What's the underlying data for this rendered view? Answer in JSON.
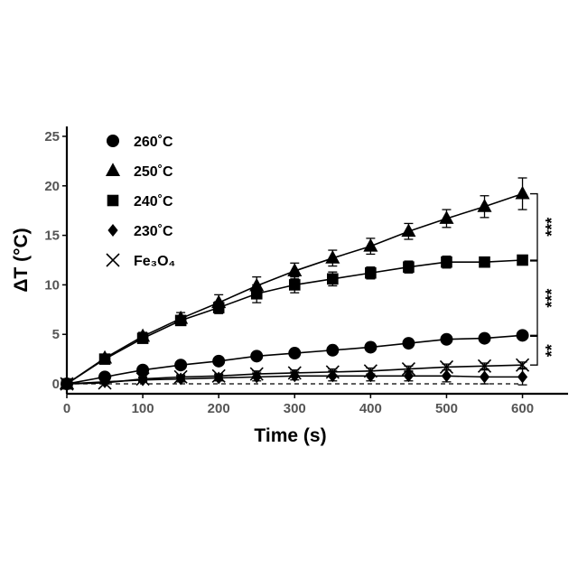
{
  "chart_data": {
    "type": "line",
    "xlabel": "Time (s)",
    "ylabel": "ΔT (°C)",
    "xlim": [
      0,
      660
    ],
    "ylim": [
      -1,
      26
    ],
    "xticks": [
      "0",
      "100",
      "200",
      "300",
      "400",
      "500",
      "600"
    ],
    "yticks": [
      "0",
      "5",
      "10",
      "15",
      "20",
      "25"
    ],
    "x": [
      0,
      50,
      100,
      150,
      200,
      250,
      300,
      350,
      400,
      450,
      500,
      550,
      600
    ],
    "series": [
      {
        "name": "260˚C",
        "marker": "circle",
        "values": [
          0,
          0.7,
          1.4,
          1.9,
          2.3,
          2.8,
          3.1,
          3.4,
          3.7,
          4.1,
          4.5,
          4.6,
          4.9
        ],
        "errors": [
          0,
          0.1,
          0.1,
          0.1,
          0.1,
          0.1,
          0.1,
          0.1,
          0.1,
          0.1,
          0.1,
          0.1,
          0.1
        ]
      },
      {
        "name": "250˚C",
        "marker": "triangle",
        "values": [
          0,
          2.6,
          4.8,
          6.6,
          8.2,
          9.9,
          11.4,
          12.7,
          13.9,
          15.4,
          16.7,
          17.9,
          19.2
        ],
        "errors": [
          0,
          0.2,
          0.4,
          0.6,
          0.8,
          0.9,
          0.8,
          0.8,
          0.8,
          0.8,
          0.9,
          1.1,
          1.6
        ]
      },
      {
        "name": "240˚C",
        "marker": "square",
        "values": [
          0,
          2.5,
          4.6,
          6.4,
          7.7,
          9.1,
          10.0,
          10.6,
          11.2,
          11.8,
          12.3,
          12.3,
          12.5
        ],
        "errors": [
          0,
          0.2,
          0.4,
          0.5,
          0.6,
          0.9,
          0.8,
          0.7,
          0.6,
          0.6,
          0.6,
          0.5,
          0.3
        ]
      },
      {
        "name": "230˚C",
        "marker": "diamond",
        "values": [
          0,
          0.2,
          0.4,
          0.5,
          0.6,
          0.7,
          0.8,
          0.8,
          0.8,
          0.8,
          0.8,
          0.7,
          0.7
        ],
        "errors": [
          0,
          0.1,
          0.2,
          0.3,
          0.3,
          0.4,
          0.4,
          0.5,
          0.5,
          0.5,
          0.6,
          0.7,
          0.8
        ]
      },
      {
        "name": "Fe₃O₄",
        "marker": "x",
        "values": [
          0,
          0.1,
          0.5,
          0.7,
          0.8,
          1.0,
          1.1,
          1.2,
          1.3,
          1.5,
          1.7,
          1.8,
          1.9
        ],
        "errors": [
          0,
          0.1,
          0.2,
          0.2,
          0.2,
          0.3,
          0.3,
          0.3,
          0.3,
          0.3,
          0.3,
          0.3,
          0.3
        ]
      }
    ],
    "reference_line": {
      "y": 0,
      "style": "dashed"
    },
    "legend_position": "top-left",
    "significance": [
      {
        "label": "***",
        "from_y": 19.2,
        "to_y": 12.5
      },
      {
        "label": "***",
        "from_y": 12.5,
        "to_y": 4.9
      },
      {
        "label": "**",
        "from_y": 4.9,
        "to_y": 1.9
      }
    ]
  }
}
